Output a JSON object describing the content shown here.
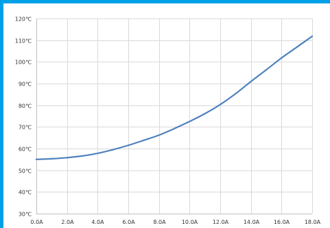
{
  "chart_data": {
    "type": "line",
    "title": "",
    "xlabel": "",
    "ylabel": "",
    "x_ticks": [
      "0.0A",
      "2.0A",
      "4.0A",
      "6.0A",
      "8.0A",
      "10.0A",
      "12.0A",
      "14.0A",
      "16.0A",
      "18.0A"
    ],
    "y_ticks": [
      "30℃",
      "40℃",
      "50℃",
      "60℃",
      "70℃",
      "80℃",
      "90℃",
      "100℃",
      "110℃",
      "120℃"
    ],
    "xlim": [
      0,
      18
    ],
    "ylim": [
      30,
      120
    ],
    "grid": true,
    "legend": "none",
    "colors": {
      "line": "#4f81bd",
      "frame_border": "#00a0e8",
      "grid": "#d9d9d9"
    },
    "series": [
      {
        "x": [
          0,
          1,
          2,
          3,
          4,
          5,
          6,
          7,
          8,
          9,
          10,
          11,
          12,
          13,
          14,
          15,
          16,
          17,
          18
        ],
        "values": [
          55,
          55.3,
          55.8,
          56.6,
          57.8,
          59.5,
          61.5,
          63.8,
          66.2,
          69.2,
          72.5,
          76.1,
          80.3,
          85.3,
          90.9,
          96.3,
          101.8,
          106.8,
          111.8
        ]
      }
    ]
  }
}
